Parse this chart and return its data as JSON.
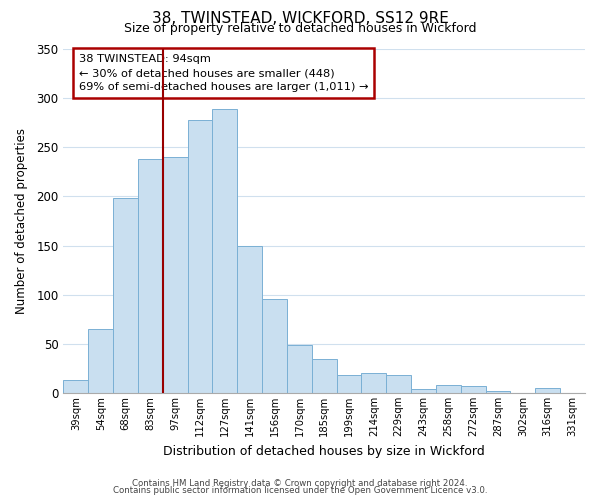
{
  "title": "38, TWINSTEAD, WICKFORD, SS12 9RE",
  "subtitle": "Size of property relative to detached houses in Wickford",
  "xlabel": "Distribution of detached houses by size in Wickford",
  "ylabel": "Number of detached properties",
  "bar_labels": [
    "39sqm",
    "54sqm",
    "68sqm",
    "83sqm",
    "97sqm",
    "112sqm",
    "127sqm",
    "141sqm",
    "156sqm",
    "170sqm",
    "185sqm",
    "199sqm",
    "214sqm",
    "229sqm",
    "243sqm",
    "258sqm",
    "272sqm",
    "287sqm",
    "302sqm",
    "316sqm",
    "331sqm"
  ],
  "bar_heights": [
    13,
    65,
    198,
    238,
    240,
    278,
    289,
    150,
    96,
    49,
    35,
    18,
    20,
    18,
    4,
    8,
    7,
    2,
    0,
    5,
    0
  ],
  "bar_color": "#c9dff0",
  "bar_edge_color": "#7ab0d4",
  "red_line_x": 3.5,
  "ylim": [
    0,
    350
  ],
  "yticks": [
    0,
    50,
    100,
    150,
    200,
    250,
    300,
    350
  ],
  "annot_title": "38 TWINSTEAD: 94sqm",
  "annot_line2": "← 30% of detached houses are smaller (448)",
  "annot_line3": "69% of semi-detached houses are larger (1,011) →",
  "annotation_box_color": "#ffffff",
  "annotation_box_edge_color": "#aa0000",
  "footer_line1": "Contains HM Land Registry data © Crown copyright and database right 2024.",
  "footer_line2": "Contains public sector information licensed under the Open Government Licence v3.0.",
  "background_color": "#ffffff",
  "grid_color": "#d0e0ee"
}
